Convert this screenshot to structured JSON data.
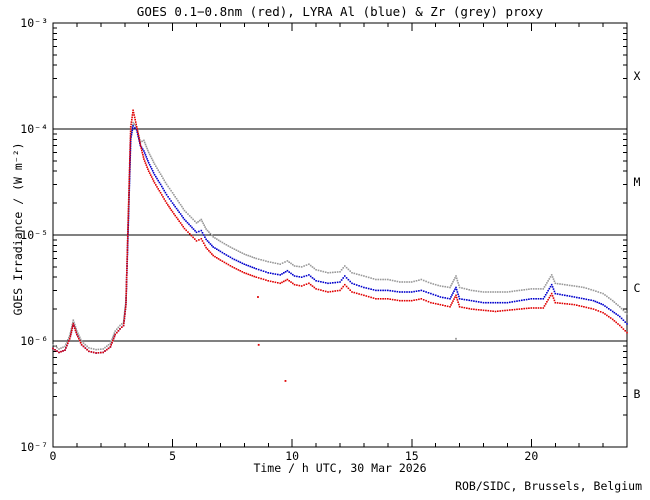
{
  "credit": "ROB/SIDC, Brussels, Belgium",
  "colors": {
    "red": "#e00000",
    "blue": "#0000cc",
    "grey": "#999999",
    "axis": "#000000",
    "background": "#ffffff",
    "title_text": "#000000"
  },
  "chart_data": {
    "type": "line",
    "style": "dotted",
    "title": "GOES 0.1−0.8nm (red), LYRA Al (blue) & Zr (grey) proxy",
    "xlabel": "Time / h UTC, 30 Mar 2026",
    "ylabel": "GOES Irradiance / (W m⁻²)",
    "x_range": [
      0,
      24
    ],
    "y_range": [
      1e-07,
      0.001
    ],
    "y_scale": "log",
    "grid": false,
    "x_ticks": [
      0,
      5,
      10,
      15,
      20
    ],
    "x_minor_step": 1,
    "y_tick_labels": [
      "10⁻³",
      "10⁻⁴",
      "10⁻⁵",
      "10⁻⁶",
      "10⁻⁷"
    ],
    "y_tick_exponents": [
      -3,
      -4,
      -5,
      -6,
      -7
    ],
    "class_lines": [
      0.0001,
      1e-05,
      1e-06
    ],
    "class_labels": [
      {
        "label": "X",
        "level": 0.000316
      },
      {
        "label": "M",
        "level": 3.16e-05
      },
      {
        "label": "C",
        "level": 3.16e-06
      },
      {
        "label": "B",
        "level": 3.16e-07
      }
    ],
    "x_hours": [
      0.0,
      0.25,
      0.5,
      0.7,
      0.85,
      1.0,
      1.2,
      1.5,
      1.8,
      2.1,
      2.4,
      2.6,
      2.8,
      2.95,
      3.05,
      3.15,
      3.25,
      3.35,
      3.5,
      3.65,
      3.8,
      4.0,
      4.25,
      4.5,
      4.75,
      5.0,
      5.5,
      6.0,
      6.2,
      6.4,
      6.7,
      7.0,
      7.5,
      8.0,
      8.5,
      9.0,
      9.5,
      9.8,
      10.1,
      10.4,
      10.7,
      11.0,
      11.5,
      12.0,
      12.2,
      12.5,
      13.0,
      13.5,
      14.0,
      14.5,
      15.0,
      15.4,
      15.8,
      16.2,
      16.6,
      16.85,
      17.0,
      17.5,
      18.0,
      18.5,
      19.0,
      19.5,
      20.0,
      20.5,
      20.85,
      21.0,
      21.4,
      21.8,
      22.2,
      22.6,
      23.0,
      23.4,
      23.7,
      24.0
    ],
    "series": [
      {
        "name": "LYRA Zr proxy",
        "color_key": "grey",
        "values": [
          9.2e-07,
          8.4e-07,
          8.9e-07,
          1.13e-06,
          1.57e-06,
          1.24e-06,
          9.9e-07,
          8.6e-07,
          8.3e-07,
          8.4e-07,
          9.5e-07,
          1.24e-06,
          1.4e-06,
          1.5e-06,
          2.4e-06,
          1.4e-05,
          8.5e-05,
          0.000115,
          0.000104,
          7.5e-05,
          7.8e-05,
          6e-05,
          4.65e-05,
          3.75e-05,
          3e-05,
          2.5e-05,
          1.7e-05,
          1.3e-05,
          1.4e-05,
          1.14e-05,
          9.6e-06,
          8.7e-06,
          7.5e-06,
          6.6e-06,
          6e-06,
          5.6e-06,
          5.3e-06,
          5.7e-06,
          5.1e-06,
          5e-06,
          5.3e-06,
          4.7e-06,
          4.4e-06,
          4.5e-06,
          5.1e-06,
          4.4e-06,
          4.1e-06,
          3.8e-06,
          3.8e-06,
          3.6e-06,
          3.6e-06,
          3.8e-06,
          3.5e-06,
          3.3e-06,
          3.2e-06,
          4.1e-06,
          3.2e-06,
          3e-06,
          2.9e-06,
          2.9e-06,
          2.9e-06,
          3e-06,
          3.1e-06,
          3.1e-06,
          4.2e-06,
          3.5e-06,
          3.4e-06,
          3.3e-06,
          3.2e-06,
          3e-06,
          2.8e-06,
          2.4e-06,
          2.1e-06,
          1.8e-06
        ]
      },
      {
        "name": "LYRA Al proxy",
        "color_key": "blue",
        "values": [
          8.5e-07,
          7.8e-07,
          8.2e-07,
          1.05e-06,
          1.45e-06,
          1.15e-06,
          9.2e-07,
          8e-07,
          7.7e-07,
          7.8e-07,
          8.8e-07,
          1.15e-06,
          1.3e-06,
          1.4e-06,
          2.2e-06,
          1.3e-05,
          8e-05,
          0.000107,
          9.8e-05,
          7e-05,
          6.2e-05,
          4.8e-05,
          3.7e-05,
          3e-05,
          2.4e-05,
          2e-05,
          1.4e-05,
          1.06e-05,
          1.1e-05,
          9.1e-06,
          7.7e-06,
          7e-06,
          6e-06,
          5.3e-06,
          4.8e-06,
          4.4e-06,
          4.2e-06,
          4.6e-06,
          4.1e-06,
          4e-06,
          4.2e-06,
          3.7e-06,
          3.5e-06,
          3.6e-06,
          4.1e-06,
          3.5e-06,
          3.2e-06,
          3e-06,
          3e-06,
          2.9e-06,
          2.9e-06,
          3e-06,
          2.8e-06,
          2.6e-06,
          2.5e-06,
          3.2e-06,
          2.5e-06,
          2.4e-06,
          2.3e-06,
          2.3e-06,
          2.3e-06,
          2.4e-06,
          2.5e-06,
          2.5e-06,
          3.4e-06,
          2.8e-06,
          2.7e-06,
          2.6e-06,
          2.5e-06,
          2.4e-06,
          2.2e-06,
          1.9e-06,
          1.7e-06,
          1.45e-06
        ]
      },
      {
        "name": "GOES 0.1-0.8nm",
        "color_key": "red",
        "values": [
          8.5e-07,
          7.8e-07,
          8.2e-07,
          1.05e-06,
          1.45e-06,
          1.15e-06,
          9.2e-07,
          8e-07,
          7.7e-07,
          7.8e-07,
          8.8e-07,
          1.15e-06,
          1.3e-06,
          1.4e-06,
          2.2e-06,
          1.6e-05,
          0.000105,
          0.00015,
          0.000105,
          7.2e-05,
          5.2e-05,
          4e-05,
          3.1e-05,
          2.5e-05,
          2e-05,
          1.65e-05,
          1.15e-05,
          8.8e-06,
          9.2e-06,
          7.6e-06,
          6.4e-06,
          5.8e-06,
          5e-06,
          4.4e-06,
          4e-06,
          3.7e-06,
          3.5e-06,
          3.8e-06,
          3.4e-06,
          3.3e-06,
          3.5e-06,
          3.1e-06,
          2.9e-06,
          3e-06,
          3.4e-06,
          2.9e-06,
          2.7e-06,
          2.5e-06,
          2.5e-06,
          2.4e-06,
          2.4e-06,
          2.5e-06,
          2.3e-06,
          2.2e-06,
          2.1e-06,
          2.7e-06,
          2.1e-06,
          2e-06,
          1.95e-06,
          1.9e-06,
          1.95e-06,
          2e-06,
          2.05e-06,
          2.05e-06,
          2.8e-06,
          2.3e-06,
          2.25e-06,
          2.2e-06,
          2.1e-06,
          2e-06,
          1.85e-06,
          1.6e-06,
          1.4e-06,
          1.2e-06
        ]
      }
    ],
    "outliers": [
      {
        "color_key": "red",
        "t": 8.57,
        "value": 2.6e-06
      },
      {
        "color_key": "red",
        "t": 8.6,
        "value": 9.2e-07
      },
      {
        "color_key": "red",
        "t": 9.72,
        "value": 4.2e-07
      },
      {
        "color_key": "grey",
        "t": 16.85,
        "value": 1.05e-06
      }
    ]
  }
}
